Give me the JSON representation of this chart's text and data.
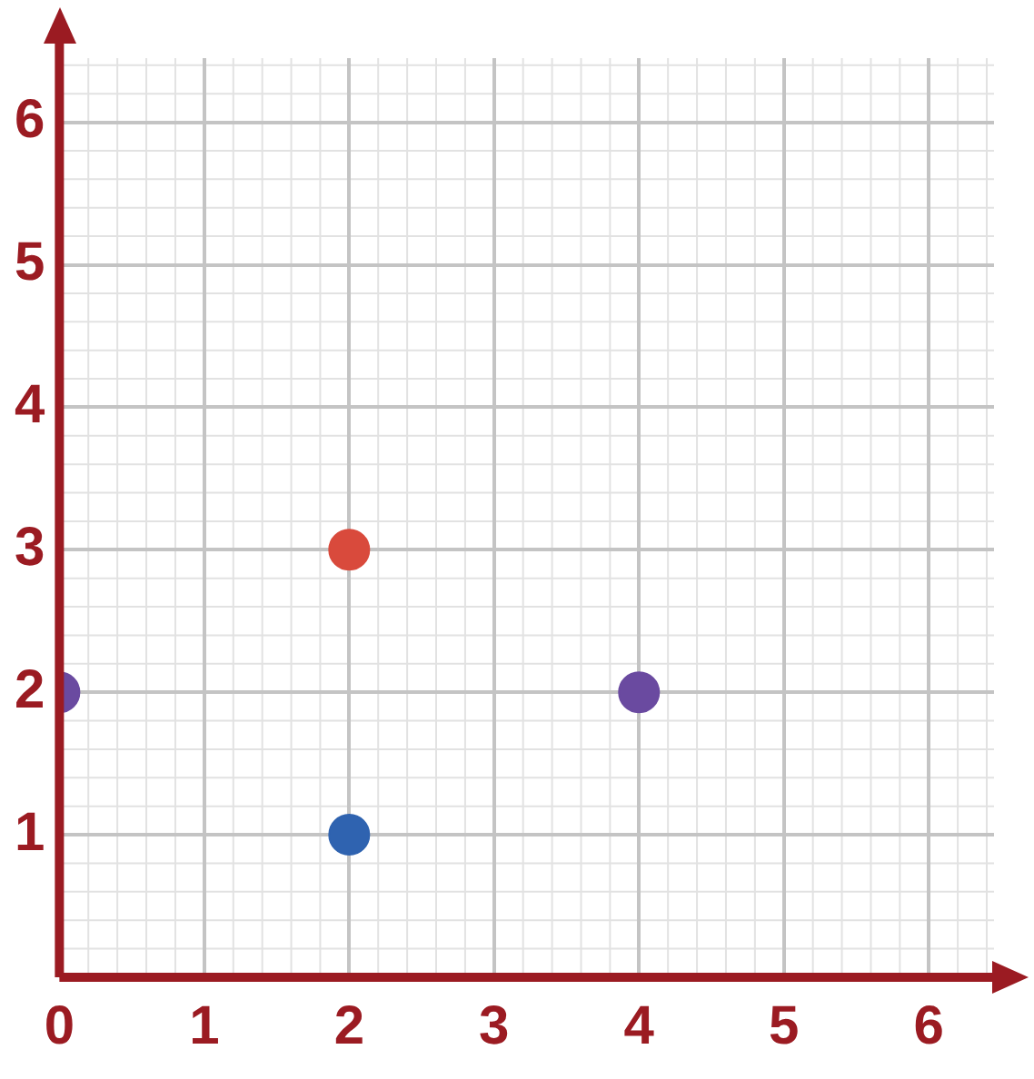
{
  "chart_data": {
    "type": "scatter",
    "x": [
      0,
      2,
      2,
      4
    ],
    "values": [
      2,
      3,
      1,
      2
    ],
    "colors": [
      "#6a4aa0",
      "#d94a3c",
      "#2f63b0",
      "#6a4aa0"
    ],
    "xlim": [
      0,
      6.45
    ],
    "ylim": [
      0,
      6.45
    ],
    "xticks": [
      0,
      1,
      2,
      3,
      4,
      5,
      6
    ],
    "yticks": [
      1,
      2,
      3,
      4,
      5,
      6
    ],
    "grid": true,
    "marker": "circle"
  }
}
